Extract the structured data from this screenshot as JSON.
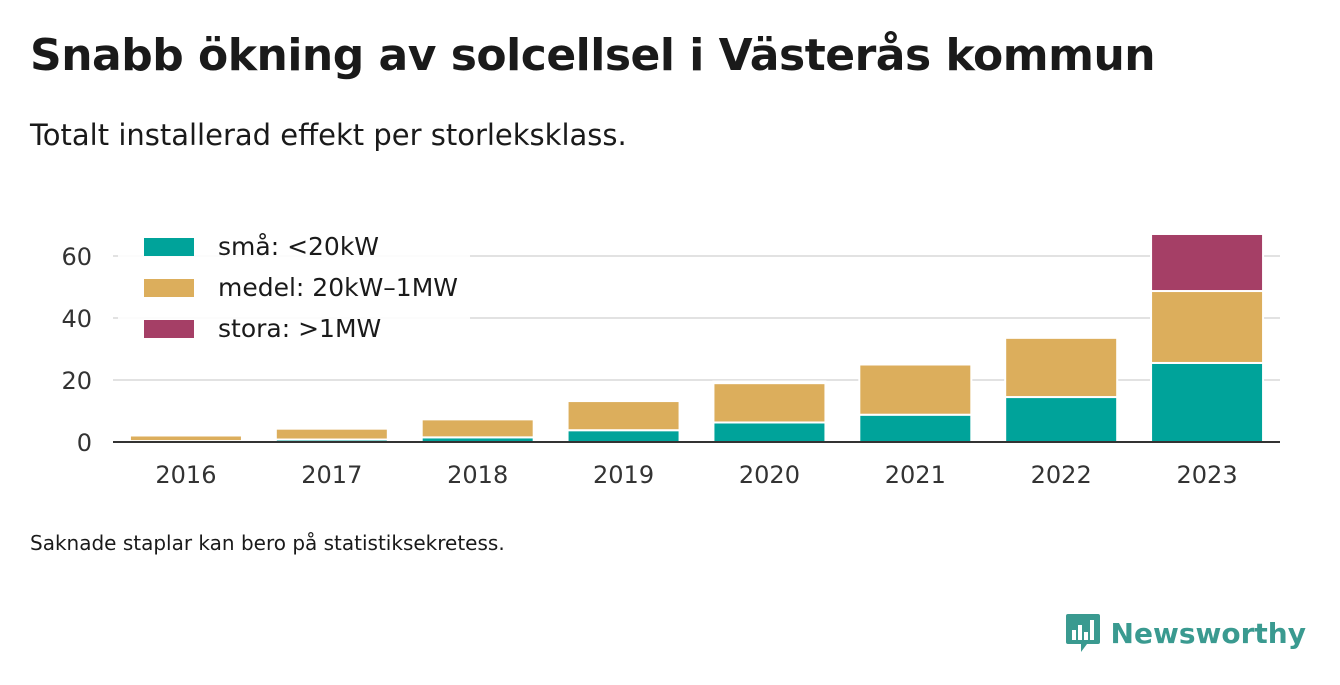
{
  "title": "Snabb ökning av solcellsel i Västerås kommun",
  "subtitle": "Totalt installerad effekt per storleksklass.",
  "note": "Saknade staplar kan bero på statistiksekretess.",
  "brand": "Newsworthy",
  "chart_data": {
    "type": "bar",
    "stacked": true,
    "categories": [
      "2016",
      "2017",
      "2018",
      "2019",
      "2020",
      "2021",
      "2022",
      "2023"
    ],
    "series": [
      {
        "name": "små: <20kW",
        "color": "#00a39a",
        "values": [
          0.3,
          0.8,
          1.5,
          3.8,
          6.3,
          8.8,
          14.5,
          25.5
        ]
      },
      {
        "name": "medel: 20kW–1MW",
        "color": "#dcae5c",
        "values": [
          1.8,
          3.5,
          5.8,
          9.4,
          12.7,
          16.2,
          19.1,
          23.2
        ]
      },
      {
        "name": "stora: >1MW",
        "color": "#a53f66",
        "values": [
          0,
          0,
          0,
          0,
          0.5,
          0,
          0,
          18.4
        ]
      }
    ],
    "yticks": [
      0,
      20,
      40,
      60
    ],
    "ylim": [
      0,
      70
    ],
    "grid": true,
    "legend_position": "top-left"
  }
}
